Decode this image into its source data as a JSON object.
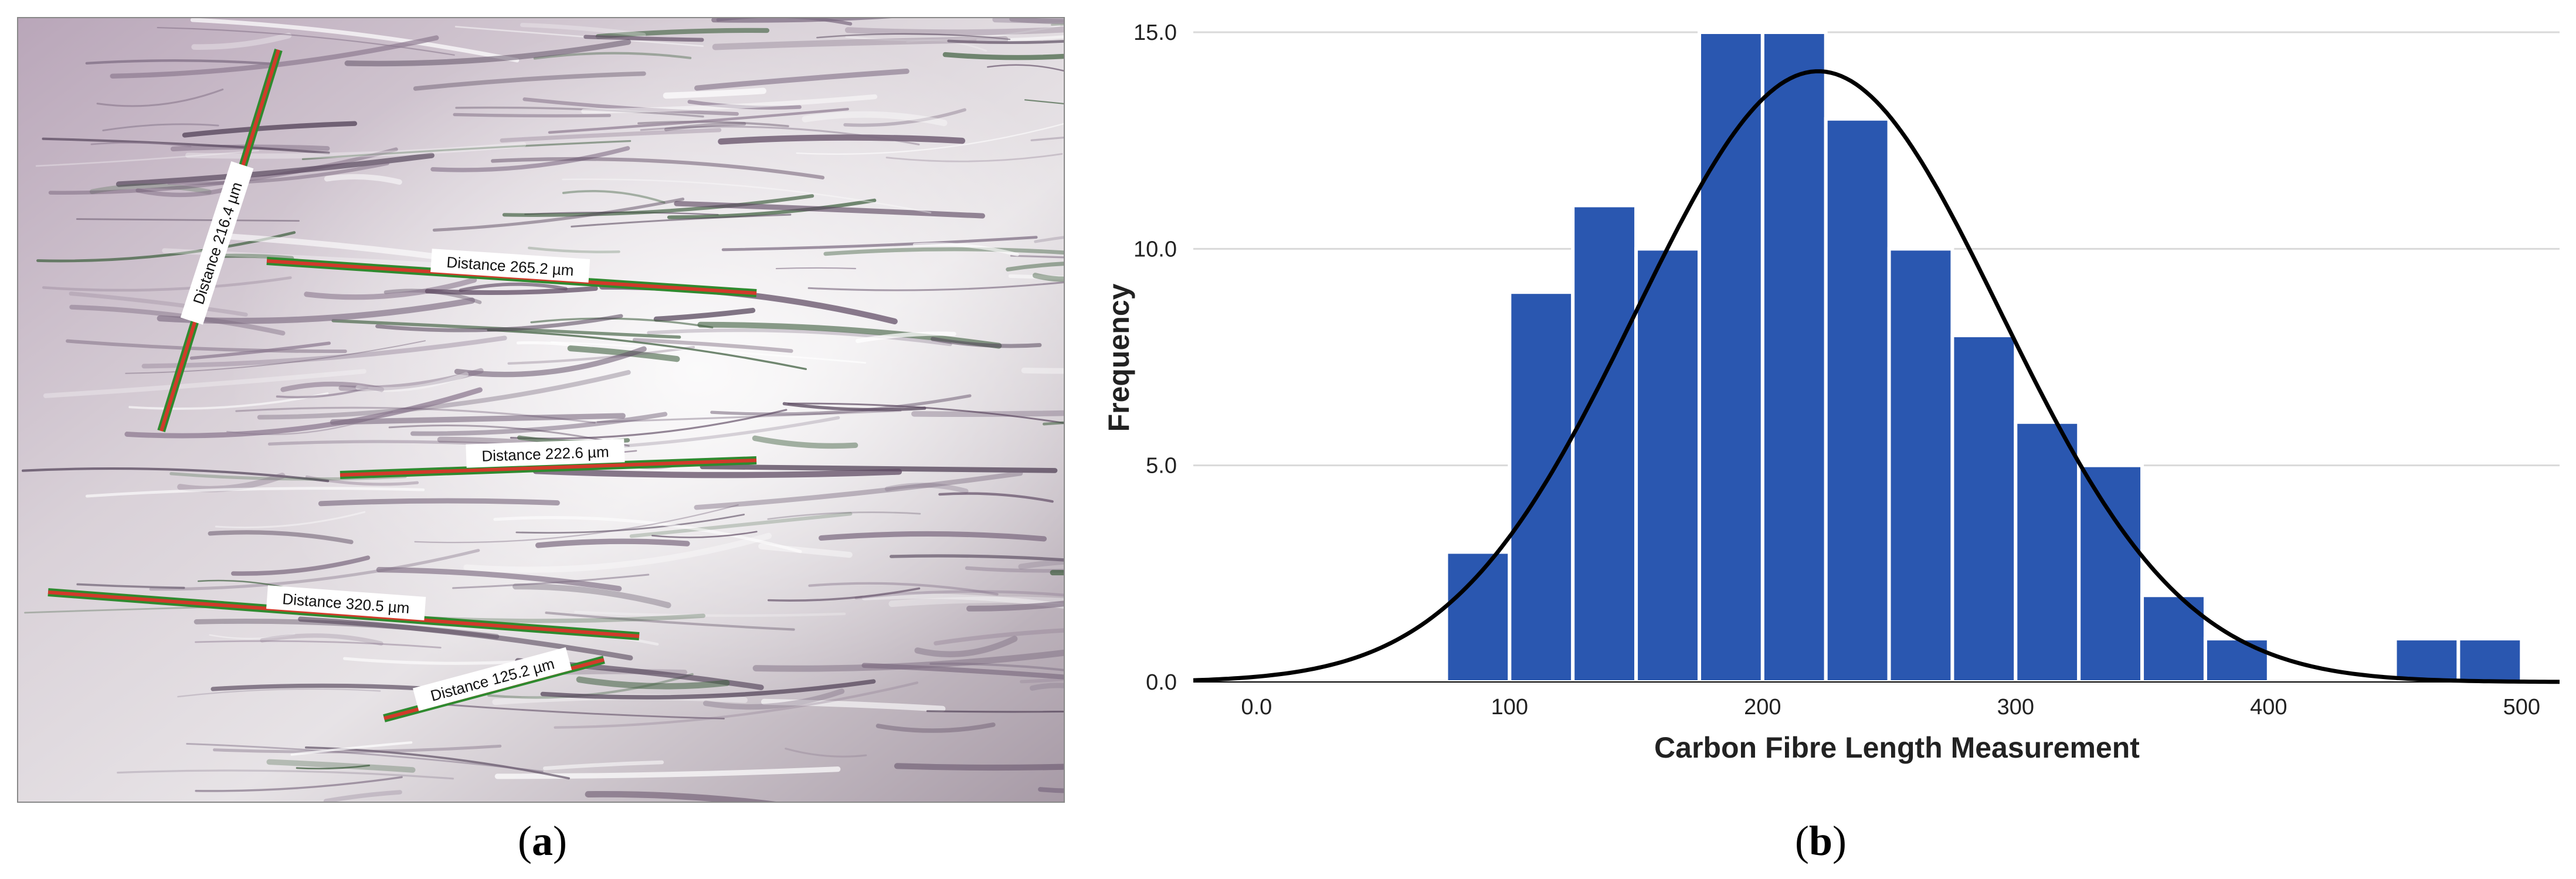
{
  "panel_a": {
    "label": "a",
    "measurements": [
      {
        "text": "Distance 216.4 µm",
        "value": 216.4,
        "unit": "µm"
      },
      {
        "text": "Distance 265.2 µm",
        "value": 265.2,
        "unit": "µm"
      },
      {
        "text": "Distance 222.6 µm",
        "value": 222.6,
        "unit": "µm"
      },
      {
        "text": "Distance 320.5 µm",
        "value": 320.5,
        "unit": "µm"
      },
      {
        "text": "Distance 125.2 µm",
        "value": 125.2,
        "unit": "µm"
      }
    ]
  },
  "panel_b": {
    "label": "b"
  },
  "chart_data": {
    "type": "bar",
    "title": "",
    "xlabel": "Carbon Fibre Length Measurement",
    "ylabel": "Frequency",
    "xlim": [
      -25,
      515
    ],
    "ylim": [
      0,
      15
    ],
    "bin_width": 25,
    "bins": [
      {
        "start": 75,
        "end": 100,
        "count": 3
      },
      {
        "start": 100,
        "end": 125,
        "count": 9
      },
      {
        "start": 125,
        "end": 150,
        "count": 11
      },
      {
        "start": 150,
        "end": 175,
        "count": 10
      },
      {
        "start": 175,
        "end": 200,
        "count": 15
      },
      {
        "start": 200,
        "end": 225,
        "count": 15
      },
      {
        "start": 225,
        "end": 250,
        "count": 13
      },
      {
        "start": 250,
        "end": 275,
        "count": 10
      },
      {
        "start": 275,
        "end": 300,
        "count": 8
      },
      {
        "start": 300,
        "end": 325,
        "count": 6
      },
      {
        "start": 325,
        "end": 350,
        "count": 5
      },
      {
        "start": 350,
        "end": 375,
        "count": 2
      },
      {
        "start": 375,
        "end": 400,
        "count": 1
      },
      {
        "start": 450,
        "end": 475,
        "count": 1
      },
      {
        "start": 475,
        "end": 500,
        "count": 1
      }
    ],
    "x_ticks": [
      {
        "value": 0,
        "label": "0.0"
      },
      {
        "value": 100,
        "label": "100"
      },
      {
        "value": 200,
        "label": "200"
      },
      {
        "value": 300,
        "label": "300"
      },
      {
        "value": 400,
        "label": "400"
      },
      {
        "value": 500,
        "label": "500"
      }
    ],
    "y_ticks": [
      {
        "value": 0,
        "label": "0.0"
      },
      {
        "value": 5,
        "label": "5.0"
      },
      {
        "value": 10,
        "label": "10.0"
      },
      {
        "value": 15,
        "label": "15.0"
      }
    ],
    "normal_curve": {
      "mean": 222,
      "sd": 72,
      "peak": 14.1
    },
    "grid": true,
    "colors": {
      "bar": "#2a57b0",
      "bar_edge": "#ffffff",
      "curve": "#000000",
      "grid": "#d9d9d9"
    }
  }
}
